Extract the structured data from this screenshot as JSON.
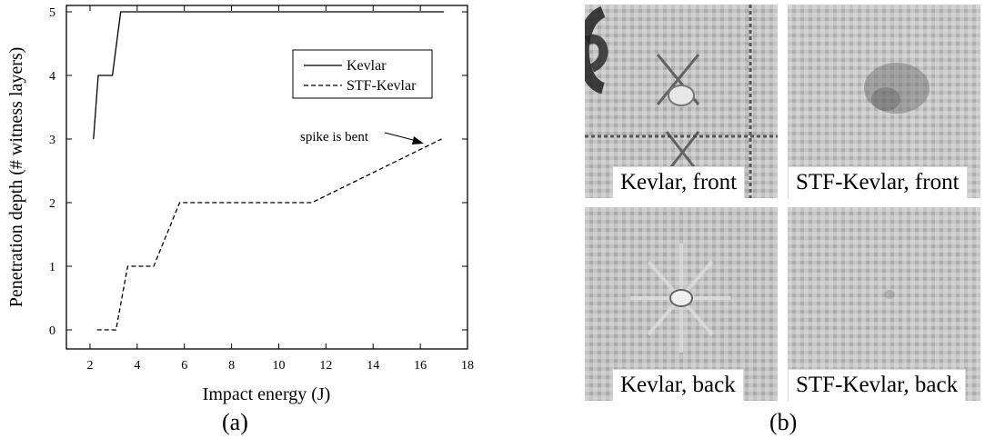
{
  "chart_data": {
    "type": "line",
    "xlabel": "Impact energy (J)",
    "ylabel": "Penetration depth (# witness layers)",
    "xlim": [
      1,
      18
    ],
    "ylim": [
      -0.3,
      5.1
    ],
    "x_ticks": [
      2,
      4,
      6,
      8,
      10,
      12,
      14,
      16,
      18
    ],
    "y_ticks": [
      0,
      1,
      2,
      3,
      4,
      5
    ],
    "grid": false,
    "legend_position": "top-right",
    "series": [
      {
        "name": "Kevlar",
        "line_style": "solid",
        "x": [
          2.15,
          2.35,
          2.35,
          2.95,
          2.95,
          3.3,
          3.3,
          17.0
        ],
        "y": [
          3,
          4,
          4,
          4,
          4,
          5,
          5,
          5
        ]
      },
      {
        "name": "STF-Kevlar",
        "line_style": "dashed",
        "x": [
          2.3,
          3.1,
          3.1,
          3.6,
          3.6,
          4.7,
          4.7,
          5.8,
          5.8,
          11.4,
          11.4,
          16.9
        ],
        "y": [
          0,
          0,
          0,
          1,
          1,
          1,
          1,
          2,
          2,
          2,
          2,
          3
        ]
      }
    ],
    "annotations": [
      {
        "text": "spike is bent",
        "x": 16.9,
        "y": 3
      }
    ]
  },
  "panel_labels": {
    "a": "(a)",
    "b": "(b)"
  },
  "photos": [
    {
      "caption": "Kevlar, front"
    },
    {
      "caption": "STF-Kevlar, front"
    },
    {
      "caption": "Kevlar, back"
    },
    {
      "caption": "STF-Kevlar, back"
    }
  ],
  "colors": {
    "line": "#000000",
    "fabric_light": "#c4c4c4",
    "fabric_dark": "#a9a9a9"
  }
}
